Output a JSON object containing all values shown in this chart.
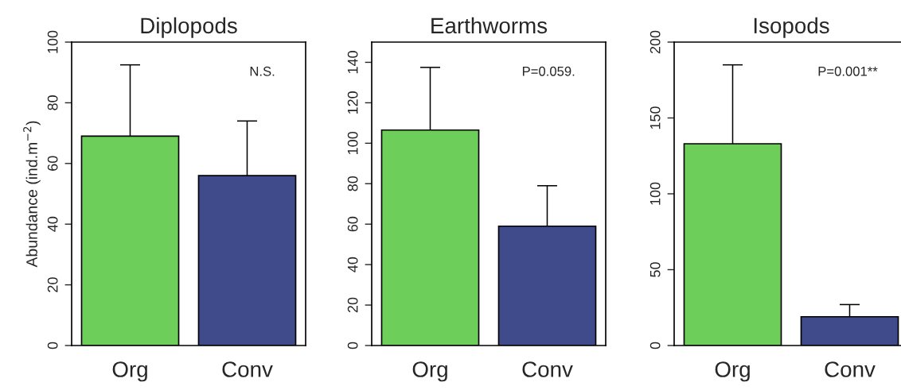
{
  "chart_data": [
    {
      "type": "bar",
      "title": "Diplopods",
      "ylabel": "Abundance (ind.m$^{−2}$)",
      "categories": [
        "Org",
        "Conv"
      ],
      "values": [
        69,
        56
      ],
      "colors": [
        "#6dce5a",
        "#3f4b8a"
      ],
      "errors": [
        [
          69,
          92.5
        ],
        [
          56,
          74
        ]
      ],
      "ylim": [
        0,
        100
      ],
      "yticks": [
        0,
        20,
        40,
        60,
        80,
        100
      ],
      "annotations": [
        "N.S."
      ]
    },
    {
      "type": "bar",
      "title": "Earthworms",
      "categories": [
        "Org",
        "Conv"
      ],
      "values": [
        106.5,
        59
      ],
      "colors": [
        "#6dce5a",
        "#3f4b8a"
      ],
      "errors": [
        [
          106.5,
          137.5
        ],
        [
          59,
          79
        ]
      ],
      "ylim": [
        0,
        150
      ],
      "yticks": [
        0,
        20,
        40,
        60,
        80,
        100,
        120,
        140
      ],
      "annotations": [
        "P=0.059."
      ]
    },
    {
      "type": "bar",
      "title": "Isopods",
      "categories": [
        "Org",
        "Conv"
      ],
      "values": [
        133,
        19
      ],
      "colors": [
        "#6dce5a",
        "#3f4b8a"
      ],
      "errors": [
        [
          133,
          185
        ],
        [
          19,
          27
        ]
      ],
      "ylim": [
        0,
        200
      ],
      "yticks": [
        0,
        50,
        100,
        150,
        200
      ],
      "annotations": [
        "P=0.001**"
      ]
    }
  ]
}
